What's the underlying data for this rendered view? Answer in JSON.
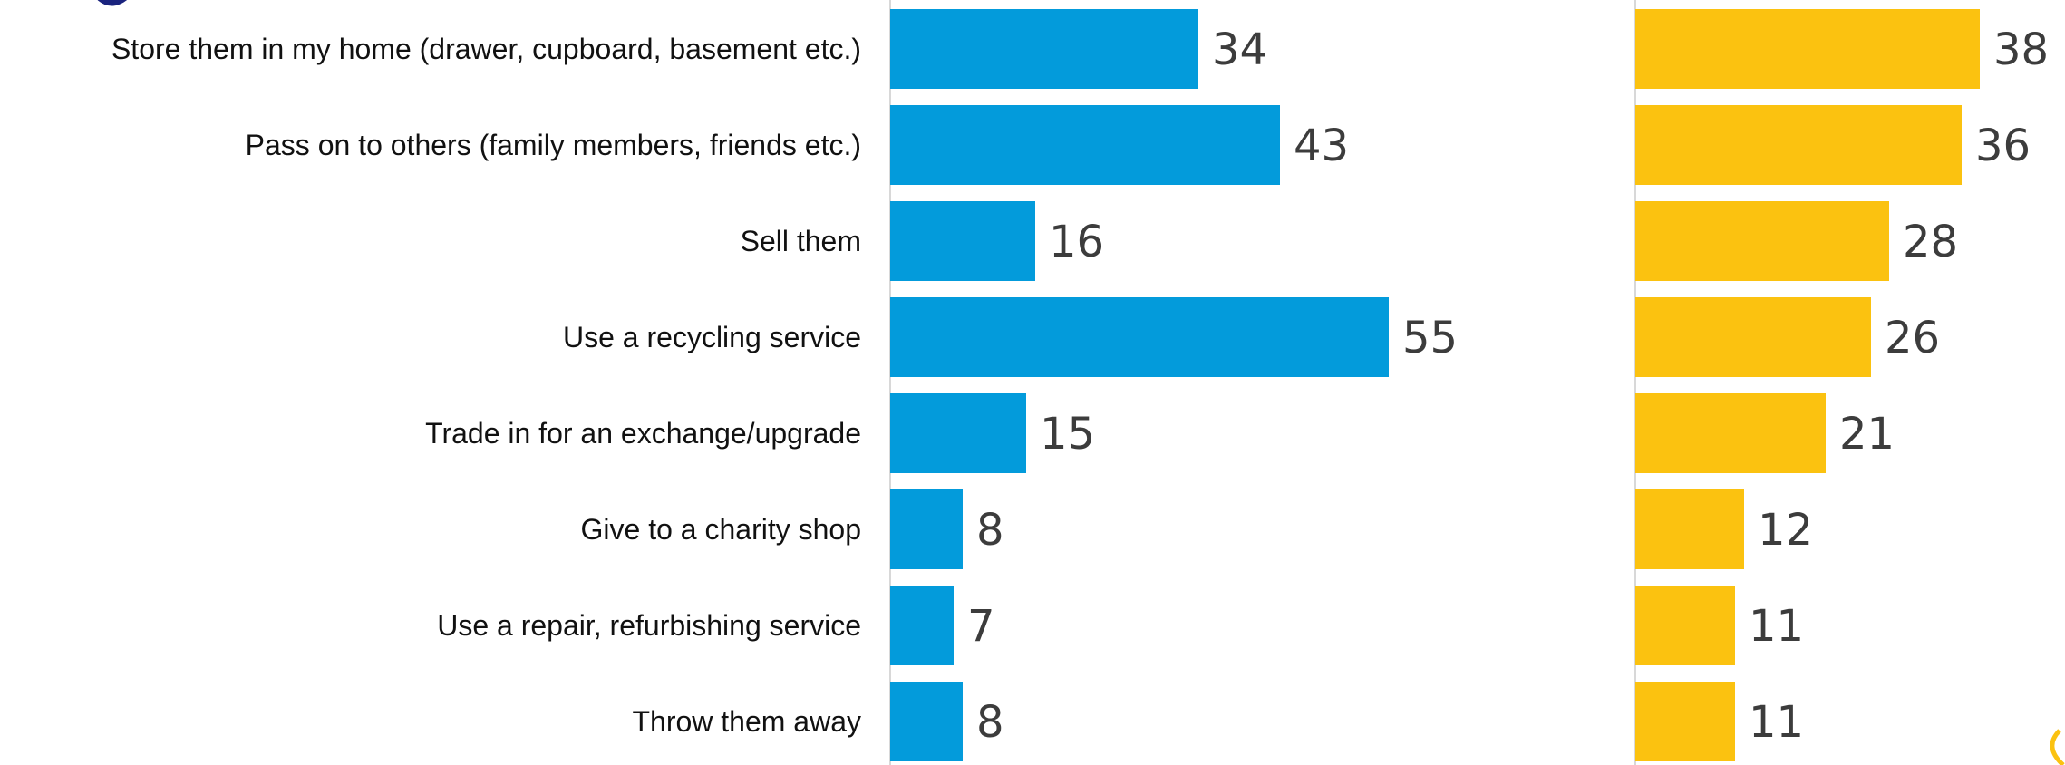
{
  "colors": {
    "background": "#ffffff",
    "axis_line": "#d8d8d8",
    "category_text": "#111111",
    "value_text": "#3c3c3c",
    "corner_arc_top_left": "#1a237e",
    "corner_arc_bottom_right": "#fbc210"
  },
  "chart_data": {
    "type": "bar",
    "orientation": "horizontal",
    "title": "",
    "xlabel": "",
    "ylabel": "",
    "grid": false,
    "legend": "none",
    "data_labels": true,
    "categories": [
      "Store them in my home (drawer, cupboard, basement etc.)",
      "Pass on to others (family members, friends etc.)",
      "Sell them",
      "Use a recycling service",
      "Trade in for an exchange/upgrade",
      "Give to a charity shop",
      "Use a repair, refurbishing service",
      "Throw them away"
    ],
    "series": [
      {
        "color": "#039bdb",
        "values": [
          34,
          43,
          16,
          55,
          15,
          8,
          7,
          8
        ],
        "xlim": [
          0,
          62
        ]
      },
      {
        "color": "#fbc210",
        "values": [
          38,
          36,
          28,
          26,
          21,
          12,
          11,
          11
        ],
        "xlim": [
          0,
          46
        ]
      }
    ]
  }
}
